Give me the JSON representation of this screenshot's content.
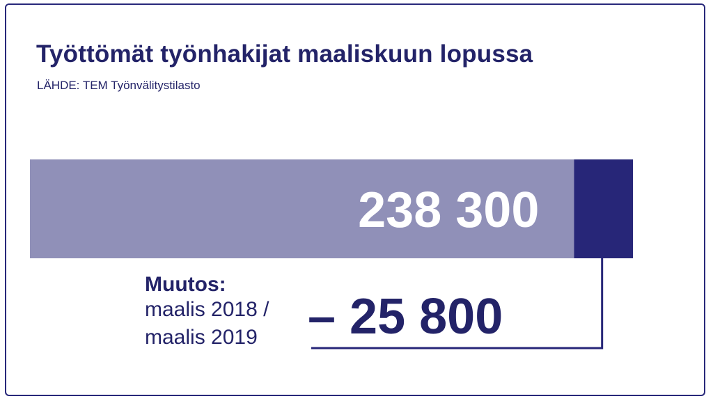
{
  "title": "Työttömät työnhakijat maaliskuun lopussa",
  "source": "LÄHDE: TEM Työnvälitystilasto",
  "chart_data": {
    "type": "bar",
    "orientation": "horizontal",
    "series": [
      {
        "value": 238300,
        "label": "238 300",
        "color": "#9090b8"
      },
      {
        "value": 25800,
        "color": "#272678"
      }
    ],
    "change": {
      "heading": "Muutos:",
      "period_line1": "maalis 2018 /",
      "period_line2": "maalis 2019",
      "value": -25800,
      "label": "– 25 800"
    },
    "colors": {
      "text": "#232368",
      "bar_current": "#9090b8",
      "bar_decline": "#272678",
      "label": "#ffffff"
    }
  }
}
